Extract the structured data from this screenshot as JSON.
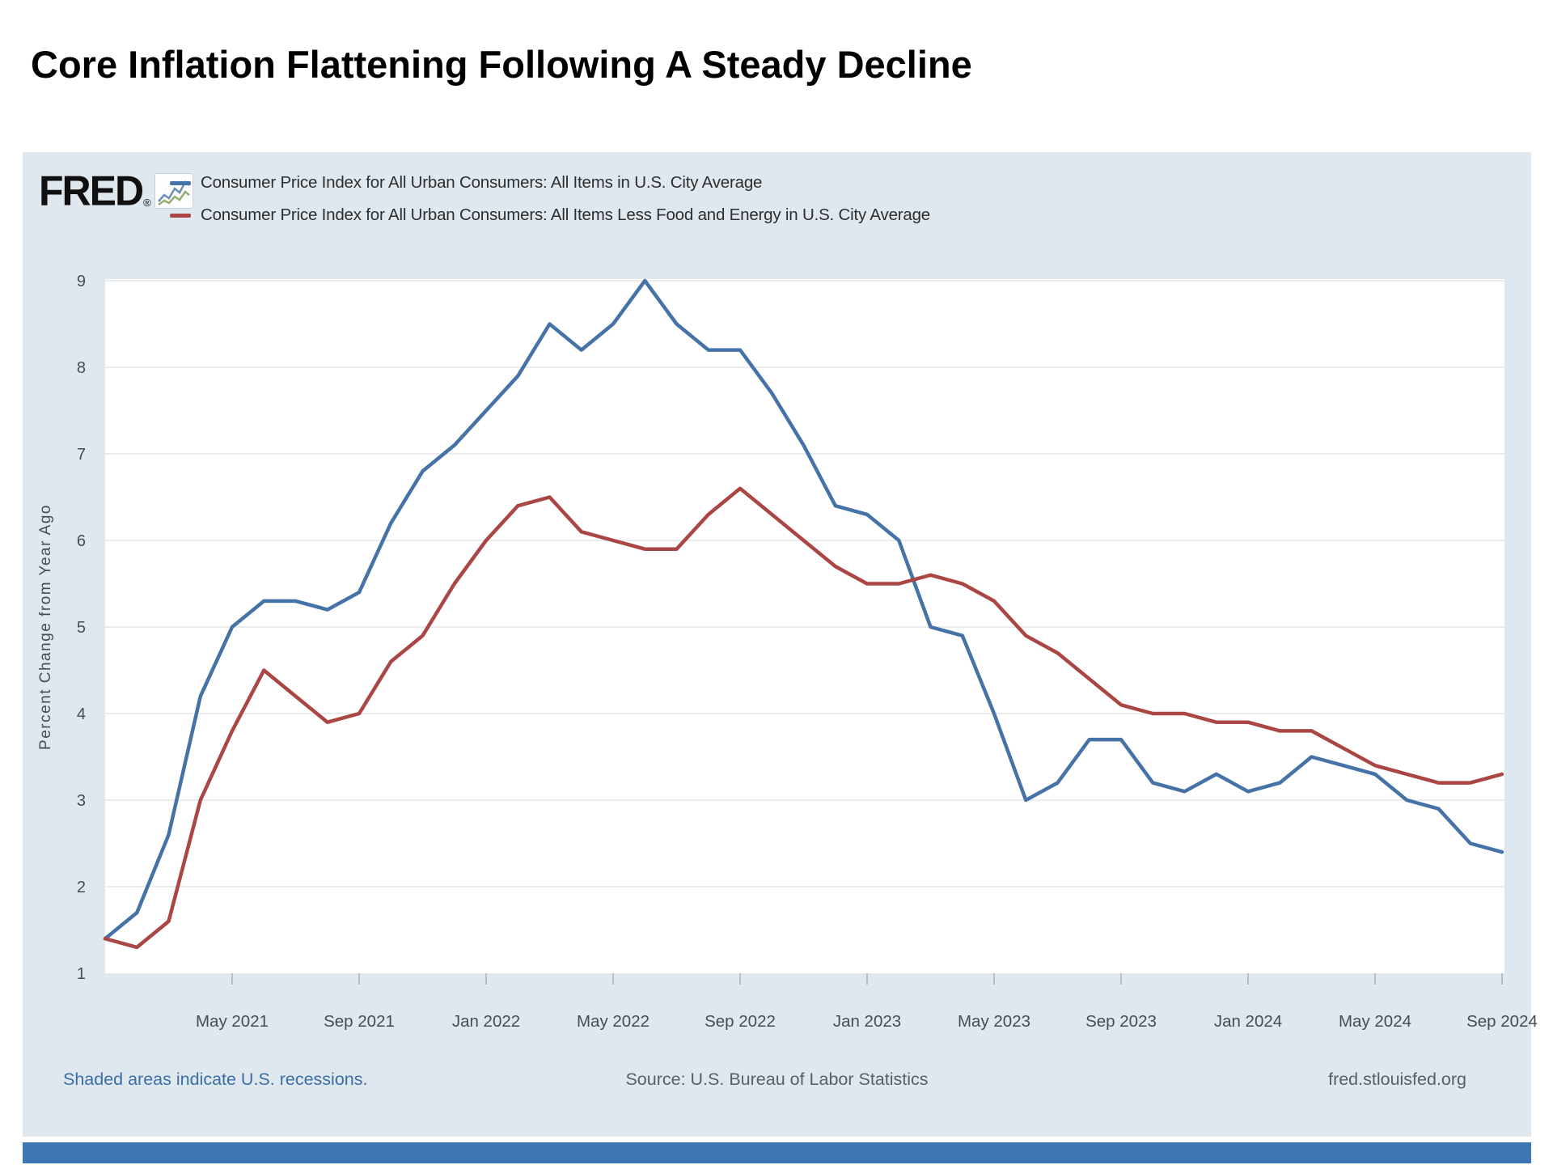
{
  "page": {
    "title": "Core Inflation Flattening Following A Steady Decline"
  },
  "branding": {
    "logo_text": "FRED",
    "registered_mark": "®",
    "logo_icon": "sparkline-chart-icon"
  },
  "legend": [
    {
      "label": "Consumer Price Index for All Urban Consumers: All Items in U.S. City Average",
      "color": "#4572a7"
    },
    {
      "label": "Consumer Price Index for All Urban Consumers: All Items Less Food and Energy in U.S. City Average",
      "color": "#aa4643"
    }
  ],
  "footer": {
    "left": "Shaded areas indicate U.S. recessions.",
    "center": "Source: U.S. Bureau of Labor Statistics",
    "right": "fred.stlouisfed.org",
    "link_color": "#3b6ea5",
    "text_color": "#5a5f64"
  },
  "colors": {
    "card_background": "#dfe7ef",
    "plot_background": "#ffffff",
    "gridline": "#e4e6e8",
    "tick_mark": "#b8bfc6",
    "axis_text": "#474d53",
    "bottom_bar": "#3c76b5"
  },
  "chart_data": {
    "type": "line",
    "title": "Core Inflation Flattening Following A Steady Decline",
    "xlabel": "",
    "ylabel": "Percent Change from Year Ago",
    "ylim": [
      1,
      9
    ],
    "yticks": [
      1,
      2,
      3,
      4,
      5,
      6,
      7,
      8,
      9
    ],
    "grid": true,
    "legend_position": "top-left",
    "categories": [
      "Jan 2021",
      "Feb 2021",
      "Mar 2021",
      "Apr 2021",
      "May 2021",
      "Jun 2021",
      "Jul 2021",
      "Aug 2021",
      "Sep 2021",
      "Oct 2021",
      "Nov 2021",
      "Dec 2021",
      "Jan 2022",
      "Feb 2022",
      "Mar 2022",
      "Apr 2022",
      "May 2022",
      "Jun 2022",
      "Jul 2022",
      "Aug 2022",
      "Sep 2022",
      "Oct 2022",
      "Nov 2022",
      "Dec 2022",
      "Jan 2023",
      "Feb 2023",
      "Mar 2023",
      "Apr 2023",
      "May 2023",
      "Jun 2023",
      "Jul 2023",
      "Aug 2023",
      "Sep 2023",
      "Oct 2023",
      "Nov 2023",
      "Dec 2023",
      "Jan 2024",
      "Feb 2024",
      "Mar 2024",
      "Apr 2024",
      "May 2024",
      "Jun 2024",
      "Jul 2024",
      "Aug 2024",
      "Sep 2024"
    ],
    "xticks": [
      {
        "label": "May 2021",
        "month_index": 4
      },
      {
        "label": "Sep 2021",
        "month_index": 8
      },
      {
        "label": "Jan 2022",
        "month_index": 12
      },
      {
        "label": "May 2022",
        "month_index": 16
      },
      {
        "label": "Sep 2022",
        "month_index": 20
      },
      {
        "label": "Jan 2023",
        "month_index": 24
      },
      {
        "label": "May 2023",
        "month_index": 28
      },
      {
        "label": "Sep 2023",
        "month_index": 32
      },
      {
        "label": "Jan 2024",
        "month_index": 36
      },
      {
        "label": "May 2024",
        "month_index": 40
      },
      {
        "label": "Sep 2024",
        "month_index": 44
      }
    ],
    "series": [
      {
        "name": "Consumer Price Index for All Urban Consumers: All Items in U.S. City Average",
        "color": "#4572a7",
        "values": [
          1.4,
          1.7,
          2.6,
          4.2,
          5.0,
          5.3,
          5.3,
          5.2,
          5.4,
          6.2,
          6.8,
          7.1,
          7.5,
          7.9,
          8.5,
          8.2,
          8.5,
          9.0,
          8.5,
          8.2,
          8.2,
          7.7,
          7.1,
          6.4,
          6.3,
          6.0,
          5.0,
          4.9,
          4.0,
          3.0,
          3.2,
          3.7,
          3.7,
          3.2,
          3.1,
          3.3,
          3.1,
          3.2,
          3.5,
          3.4,
          3.3,
          3.0,
          2.9,
          2.5,
          2.4
        ]
      },
      {
        "name": "Consumer Price Index for All Urban Consumers: All Items Less Food and Energy in U.S. City Average",
        "color": "#aa4643",
        "values": [
          1.4,
          1.3,
          1.6,
          3.0,
          3.8,
          4.5,
          4.2,
          3.9,
          4.0,
          4.6,
          4.9,
          5.5,
          6.0,
          6.4,
          6.5,
          6.1,
          6.0,
          5.9,
          5.9,
          6.3,
          6.6,
          6.3,
          6.0,
          5.7,
          5.5,
          5.5,
          5.6,
          5.5,
          5.3,
          4.9,
          4.7,
          4.4,
          4.1,
          4.0,
          4.0,
          3.9,
          3.9,
          3.8,
          3.8,
          3.6,
          3.4,
          3.3,
          3.2,
          3.2,
          3.3
        ]
      }
    ]
  }
}
